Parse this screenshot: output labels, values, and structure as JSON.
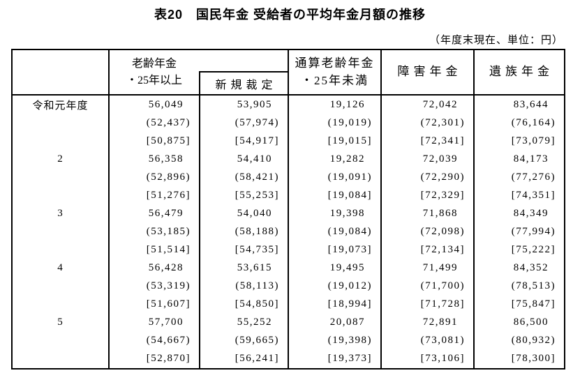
{
  "title": "表20　国民年金 受給者の平均年金月額の推移",
  "unit_note": "（年度末現在、単位：円）",
  "table": {
    "header": {
      "old_age_line1": "老齢年金",
      "old_age_line2": "・25年以上",
      "new_ruling": "新規裁定",
      "total_old_age_line1": "通算老齢年金",
      "total_old_age_line2": "・25年未満",
      "disability": "障害年金",
      "survivor": "遺族年金"
    },
    "column_order": [
      "老齢年金・25年以上",
      "新規裁定",
      "通算老齢年金・25年未満",
      "障害年金",
      "遺族年金"
    ],
    "year_blocks": [
      {
        "year": "令和元年度",
        "lines": [
          {
            "style": "plain",
            "values": [
              "56,049",
              "53,905",
              "19,126",
              "72,042",
              "83,644"
            ]
          },
          {
            "style": "paren",
            "values": [
              "(52,437)",
              "(57,974)",
              "(19,019)",
              "(72,301)",
              "(76,164)"
            ]
          },
          {
            "style": "bracket",
            "values": [
              "[50,875]",
              "[54,917]",
              "[19,015]",
              "[72,341]",
              "[73,079]"
            ]
          }
        ]
      },
      {
        "year": "2",
        "lines": [
          {
            "style": "plain",
            "values": [
              "56,358",
              "54,410",
              "19,282",
              "72,039",
              "84,173"
            ]
          },
          {
            "style": "paren",
            "values": [
              "(52,896)",
              "(58,421)",
              "(19,091)",
              "(72,290)",
              "(77,276)"
            ]
          },
          {
            "style": "bracket",
            "values": [
              "[51,276]",
              "[55,253]",
              "[19,084]",
              "[72,329]",
              "[74,351]"
            ]
          }
        ]
      },
      {
        "year": "3",
        "lines": [
          {
            "style": "plain",
            "values": [
              "56,479",
              "54,040",
              "19,398",
              "71,868",
              "84,349"
            ]
          },
          {
            "style": "paren",
            "values": [
              "(53,185)",
              "(58,188)",
              "(19,084)",
              "(72,098)",
              "(77,994)"
            ]
          },
          {
            "style": "bracket",
            "values": [
              "[51,514]",
              "[54,735]",
              "[19,073]",
              "[72,134]",
              "[75,222]"
            ]
          }
        ]
      },
      {
        "year": "4",
        "lines": [
          {
            "style": "plain",
            "values": [
              "56,428",
              "53,615",
              "19,495",
              "71,499",
              "84,352"
            ]
          },
          {
            "style": "paren",
            "values": [
              "(53,319)",
              "(58,113)",
              "(19,012)",
              "(71,700)",
              "(78,513)"
            ]
          },
          {
            "style": "bracket",
            "values": [
              "[51,607]",
              "[54,850]",
              "[18,994]",
              "[71,728]",
              "[75,847]"
            ]
          }
        ]
      },
      {
        "year": "5",
        "lines": [
          {
            "style": "plain",
            "values": [
              "57,700",
              "55,252",
              "20,087",
              "72,891",
              "86,500"
            ]
          },
          {
            "style": "paren",
            "values": [
              "(54,667)",
              "(59,665)",
              "(19,398)",
              "(73,081)",
              "(80,932)"
            ]
          },
          {
            "style": "bracket",
            "values": [
              "[52,870]",
              "[56,241]",
              "[19,373]",
              "[73,106]",
              "[78,300]"
            ]
          }
        ]
      }
    ]
  }
}
